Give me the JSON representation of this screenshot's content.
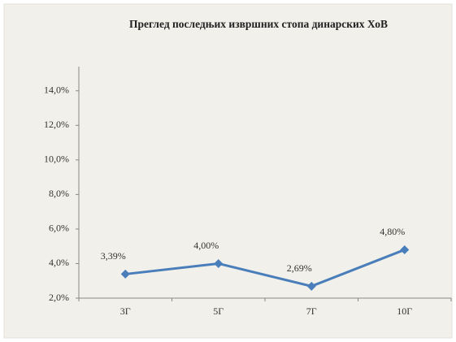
{
  "chart_data": {
    "type": "line",
    "title": "Преглед последњих извршних стопа динарских ХоВ",
    "categories": [
      "3Г",
      "5Г",
      "7Г",
      "10Г"
    ],
    "series": [
      {
        "name": "Стопа",
        "color": "#4a7ebb",
        "values": [
          3.39,
          4.0,
          2.69,
          4.8
        ],
        "value_labels": [
          "3,39%",
          "4,00%",
          "2,69%",
          "4,80%"
        ]
      }
    ],
    "ylim": [
      2,
      15.4
    ],
    "yticks": [
      {
        "value": 2,
        "label": "2,0%"
      },
      {
        "value": 4,
        "label": "4,0%"
      },
      {
        "value": 6,
        "label": "6,0%"
      },
      {
        "value": 8,
        "label": "8,0%"
      },
      {
        "value": 10,
        "label": "10,0%"
      },
      {
        "value": 12,
        "label": "12,0%"
      },
      {
        "value": 14,
        "label": "14,0%"
      }
    ]
  }
}
